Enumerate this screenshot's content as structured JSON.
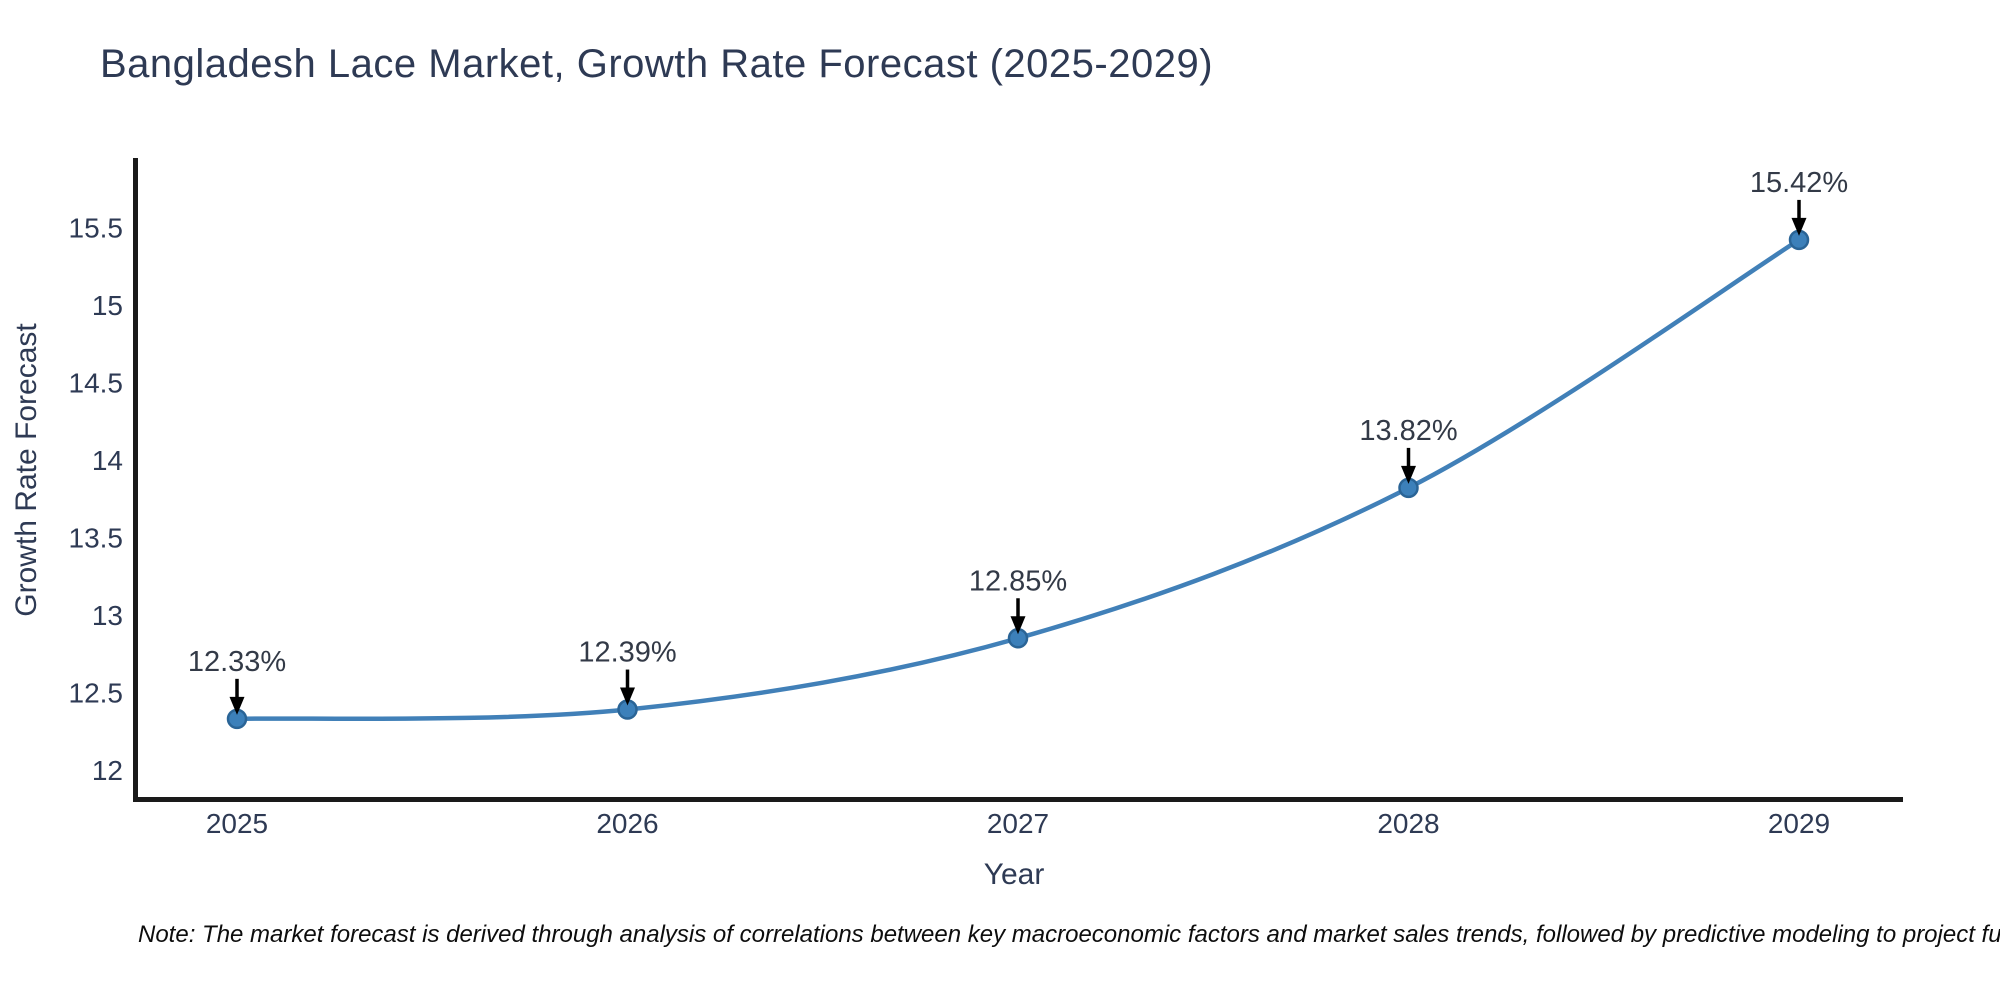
{
  "chart_data": {
    "type": "line",
    "title": "Bangladesh Lace Market, Growth Rate Forecast (2025-2029)",
    "xlabel": "Year",
    "ylabel": "Growth Rate Forecast",
    "categories": [
      "2025",
      "2026",
      "2027",
      "2028",
      "2029"
    ],
    "series": [
      {
        "name": "Growth Rate Forecast",
        "values": [
          12.33,
          12.39,
          12.85,
          13.82,
          15.42
        ],
        "point_labels": [
          "12.33%",
          "12.39%",
          "12.85%",
          "13.82%",
          "15.42%"
        ]
      }
    ],
    "yticks": [
      12,
      12.5,
      13,
      13.5,
      14,
      14.5,
      15,
      15.5
    ],
    "ylim": [
      11.8,
      15.95
    ],
    "grid": false,
    "legend_position": "none",
    "annotation_style": "label-with-down-arrow",
    "line_style": "smooth-spline",
    "colors": {
      "line": "#4180b8",
      "marker_fill": "#3c80ba",
      "marker_edge": "#2a6496",
      "arrow": "#000000",
      "axis_line": "#1a1a1a",
      "title_text": "#2e3a54",
      "tick_text": "#2e3a54",
      "annotation_text": "#333a47",
      "note_text": "#0d0d0d",
      "background": "#ffffff"
    }
  },
  "footer": {
    "note": "Note: The market forecast is derived through analysis of correlations between key macroeconomic factors and market sales trends, followed by predictive modeling to project future sales."
  }
}
